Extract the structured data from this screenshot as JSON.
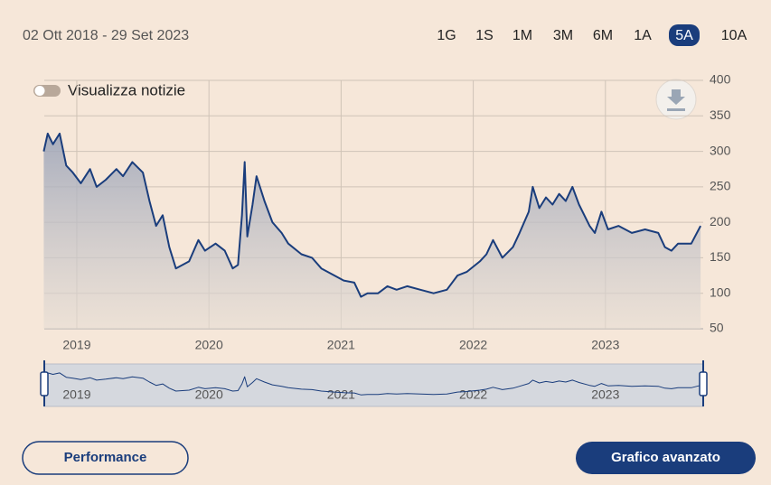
{
  "header": {
    "date_range": "02 Ott 2018 - 29 Set 2023",
    "ranges": [
      "1G",
      "1S",
      "1M",
      "3M",
      "6M",
      "1A",
      "5A",
      "10A"
    ],
    "active_range": "5A"
  },
  "toggle": {
    "label": "Visualizza notizie"
  },
  "buttons": {
    "left": "Performance",
    "right": "Grafico avanzato"
  },
  "chart_data": {
    "type": "line",
    "color": "#1a3d7c",
    "grid": true,
    "x": [
      2018.75,
      2018.78,
      2018.82,
      2018.87,
      2018.92,
      2018.97,
      2019.03,
      2019.1,
      2019.15,
      2019.22,
      2019.3,
      2019.35,
      2019.42,
      2019.5,
      2019.55,
      2019.6,
      2019.65,
      2019.7,
      2019.75,
      2019.85,
      2019.92,
      2019.97,
      2020.05,
      2020.12,
      2020.18,
      2020.22,
      2020.25,
      2020.27,
      2020.29,
      2020.33,
      2020.36,
      2020.42,
      2020.48,
      2020.55,
      2020.6,
      2020.7,
      2020.78,
      2020.85,
      2020.95,
      2021.02,
      2021.1,
      2021.15,
      2021.2,
      2021.28,
      2021.35,
      2021.42,
      2021.5,
      2021.6,
      2021.7,
      2021.8,
      2021.88,
      2021.95,
      2022.05,
      2022.1,
      2022.15,
      2022.22,
      2022.3,
      2022.35,
      2022.42,
      2022.45,
      2022.5,
      2022.55,
      2022.6,
      2022.65,
      2022.7,
      2022.75,
      2022.8,
      2022.88,
      2022.92,
      2022.97,
      2023.02,
      2023.1,
      2023.2,
      2023.3,
      2023.4,
      2023.45,
      2023.5,
      2023.55,
      2023.65,
      2023.72
    ],
    "values": [
      300,
      325,
      310,
      325,
      280,
      270,
      255,
      275,
      250,
      260,
      275,
      265,
      285,
      270,
      230,
      195,
      210,
      165,
      135,
      145,
      175,
      160,
      170,
      160,
      135,
      140,
      210,
      285,
      180,
      225,
      265,
      230,
      200,
      185,
      170,
      155,
      150,
      135,
      125,
      118,
      115,
      95,
      100,
      100,
      110,
      105,
      110,
      105,
      100,
      105,
      125,
      130,
      145,
      155,
      175,
      150,
      165,
      185,
      215,
      250,
      220,
      235,
      225,
      240,
      230,
      250,
      225,
      195,
      185,
      215,
      190,
      195,
      185,
      190,
      185,
      165,
      160,
      170,
      170,
      195
    ],
    "xlim": [
      2018.754,
      2023.74
    ],
    "xticks": [
      2019,
      2020,
      2021,
      2022,
      2023
    ],
    "ylim": [
      50,
      400
    ],
    "yticks": [
      50,
      100,
      150,
      200,
      250,
      300,
      350,
      400
    ]
  }
}
